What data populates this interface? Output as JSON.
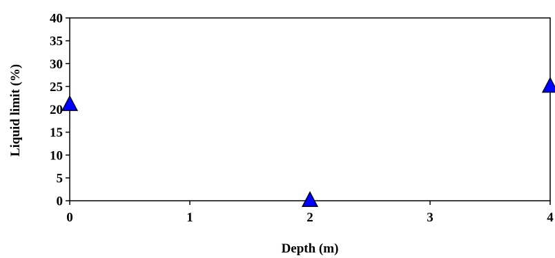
{
  "chart_data": {
    "type": "scatter",
    "title": "",
    "xlabel": "Depth (m)",
    "ylabel": "Liquid limit (%)",
    "xlim": [
      0,
      4
    ],
    "ylim": [
      0,
      40
    ],
    "xticks": [
      0,
      1,
      2,
      3,
      4
    ],
    "yticks": [
      0,
      5,
      10,
      15,
      20,
      25,
      30,
      35,
      40
    ],
    "grid": false,
    "marker": "triangle",
    "marker_color": "#0000ff",
    "series": [
      {
        "x": [
          0,
          2,
          4
        ],
        "y": [
          21,
          0,
          25
        ]
      }
    ]
  }
}
